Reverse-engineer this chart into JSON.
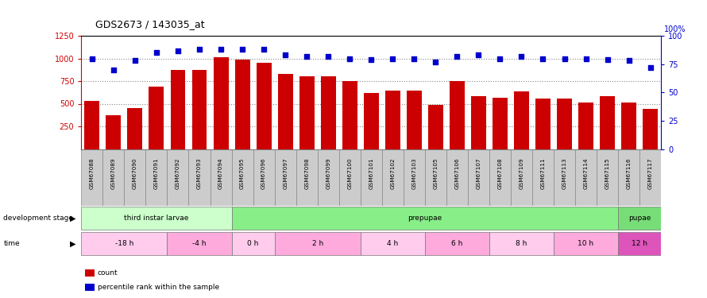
{
  "title": "GDS2673 / 143035_at",
  "samples": [
    "GSM67088",
    "GSM67089",
    "GSM67090",
    "GSM67091",
    "GSM67092",
    "GSM67093",
    "GSM67094",
    "GSM67095",
    "GSM67096",
    "GSM67097",
    "GSM67098",
    "GSM67099",
    "GSM67100",
    "GSM67101",
    "GSM67102",
    "GSM67103",
    "GSM67105",
    "GSM67106",
    "GSM67107",
    "GSM67108",
    "GSM67109",
    "GSM67111",
    "GSM67113",
    "GSM67114",
    "GSM67115",
    "GSM67116",
    "GSM67117"
  ],
  "counts": [
    530,
    370,
    450,
    690,
    870,
    870,
    1010,
    990,
    950,
    830,
    800,
    800,
    750,
    620,
    645,
    645,
    490,
    750,
    580,
    565,
    640,
    555,
    555,
    510,
    585,
    510,
    440
  ],
  "percentiles": [
    80,
    70,
    78,
    85,
    87,
    88,
    88,
    88,
    88,
    83,
    82,
    82,
    80,
    79,
    80,
    80,
    77,
    82,
    83,
    80,
    82,
    80,
    80,
    80,
    79,
    78,
    72
  ],
  "bar_color": "#cc0000",
  "scatter_color": "#0000cc",
  "ylim_left": [
    0,
    1250
  ],
  "ylim_right": [
    0,
    100
  ],
  "yticks_left": [
    250,
    500,
    750,
    1000,
    1250
  ],
  "yticks_right": [
    0,
    25,
    50,
    75,
    100
  ],
  "dev_stage_rows": [
    {
      "label": "third instar larvae",
      "color": "#ccffcc",
      "start": 0,
      "end": 7
    },
    {
      "label": "prepupae",
      "color": "#88ee88",
      "start": 7,
      "end": 25
    },
    {
      "label": "pupae",
      "color": "#88ee88",
      "start": 25,
      "end": 27
    }
  ],
  "dev_stage_colors": {
    "third instar larvae": "#ccffcc",
    "prepupae": "#88ee88",
    "pupae": "#88ee88"
  },
  "time_segments": [
    {
      "label": "-18 h",
      "color": "#ffccee",
      "start": 0,
      "end": 4
    },
    {
      "label": "-4 h",
      "color": "#ffaadd",
      "start": 4,
      "end": 7
    },
    {
      "label": "0 h",
      "color": "#ffccee",
      "start": 7,
      "end": 9
    },
    {
      "label": "2 h",
      "color": "#ffaadd",
      "start": 9,
      "end": 13
    },
    {
      "label": "4 h",
      "color": "#ffccee",
      "start": 13,
      "end": 16
    },
    {
      "label": "6 h",
      "color": "#ffaadd",
      "start": 16,
      "end": 19
    },
    {
      "label": "8 h",
      "color": "#ffccee",
      "start": 19,
      "end": 22
    },
    {
      "label": "10 h",
      "color": "#ffaadd",
      "start": 22,
      "end": 25
    },
    {
      "label": "12 h",
      "color": "#dd55bb",
      "start": 25,
      "end": 27
    }
  ],
  "xtick_bg": "#cccccc",
  "background_color": "#ffffff",
  "grid_color": "#888888",
  "tick_label_color_left": "#cc0000",
  "tick_label_color_right": "#0000cc",
  "n_samples": 27
}
